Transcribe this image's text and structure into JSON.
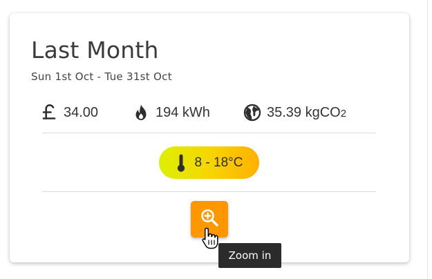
{
  "card": {
    "title": "Last Month",
    "date_range": "Sun 1st Oct - Tue 31st Oct"
  },
  "stats": {
    "cost": {
      "icon": "pound-sterling-icon",
      "value": "34.00"
    },
    "energy": {
      "icon": "flame-icon",
      "value": "194 kWh"
    },
    "carbon": {
      "icon": "globe-icon",
      "value": "35.39 kgCO",
      "subscript": "2"
    }
  },
  "temperature": {
    "icon": "thermometer-icon",
    "range": "8 - 18°C",
    "gradient_colors": [
      "#dcf000",
      "#f6d600",
      "#ffb000"
    ]
  },
  "zoom_button": {
    "icon": "zoom-in-icon",
    "color": "#ff9800"
  },
  "tooltip": {
    "text": "Zoom in"
  }
}
